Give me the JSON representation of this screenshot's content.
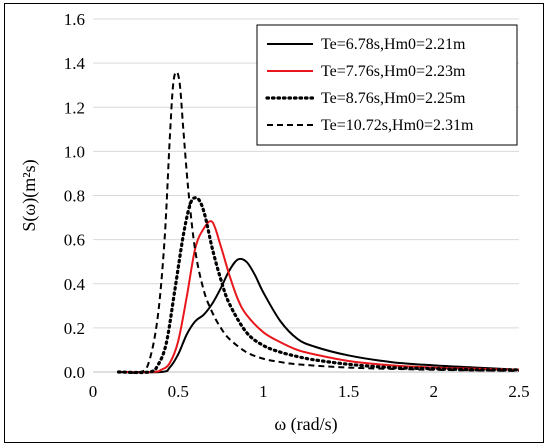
{
  "chart_data": {
    "type": "line",
    "title": "",
    "xlabel": "ω (rad/s)",
    "ylabel": "S(ω)(m²s)",
    "xlim": [
      0,
      2.5
    ],
    "ylim": [
      0,
      1.6
    ],
    "xticks": [
      0,
      0.5,
      1,
      1.5,
      2,
      2.5
    ],
    "xtick_labels": [
      "0",
      "0.5",
      "1",
      "1.5",
      "2",
      "2.5"
    ],
    "yticks": [
      0,
      0.2,
      0.4,
      0.6,
      0.8,
      1.0,
      1.2,
      1.4,
      1.6
    ],
    "ytick_labels": [
      "0.0",
      "0.2",
      "0.4",
      "0.6",
      "0.8",
      "1.0",
      "1.2",
      "1.4",
      "1.6"
    ],
    "grid": "horizontal",
    "legend_position": "top-right",
    "series": [
      {
        "name": "Te=6.78s,Hm0=2.21m",
        "color": "#000000",
        "style": "solid",
        "x": [
          0.15,
          0.4,
          0.45,
          0.5,
          0.55,
          0.6,
          0.65,
          0.7,
          0.75,
          0.8,
          0.85,
          0.9,
          0.95,
          1.0,
          1.1,
          1.2,
          1.3,
          1.5,
          1.75,
          2.0,
          2.25,
          2.5
        ],
        "y": [
          0.0,
          0.0,
          0.02,
          0.08,
          0.17,
          0.23,
          0.26,
          0.31,
          0.38,
          0.46,
          0.51,
          0.5,
          0.44,
          0.36,
          0.23,
          0.15,
          0.115,
          0.075,
          0.045,
          0.03,
          0.02,
          0.01
        ]
      },
      {
        "name": "Te=7.76s,Hm0=2.23m",
        "color": "#e8171b",
        "style": "solid",
        "x": [
          0.15,
          0.35,
          0.4,
          0.45,
          0.5,
          0.55,
          0.6,
          0.65,
          0.7,
          0.75,
          0.8,
          0.85,
          0.9,
          1.0,
          1.1,
          1.2,
          1.3,
          1.5,
          1.75,
          2.0,
          2.25,
          2.5
        ],
        "y": [
          0.0,
          0.0,
          0.01,
          0.04,
          0.14,
          0.34,
          0.56,
          0.65,
          0.68,
          0.57,
          0.44,
          0.33,
          0.26,
          0.18,
          0.135,
          0.1,
          0.08,
          0.05,
          0.03,
          0.02,
          0.015,
          0.01
        ]
      },
      {
        "name": "Te=8.76s,Hm0=2.25m",
        "color": "#000000",
        "style": "dotted",
        "x": [
          0.15,
          0.33,
          0.38,
          0.43,
          0.48,
          0.53,
          0.57,
          0.6,
          0.63,
          0.66,
          0.7,
          0.75,
          0.8,
          0.9,
          1.0,
          1.1,
          1.2,
          1.3,
          1.5,
          1.75,
          2.0,
          2.25,
          2.5
        ],
        "y": [
          0.0,
          0.0,
          0.03,
          0.13,
          0.37,
          0.62,
          0.76,
          0.79,
          0.77,
          0.7,
          0.56,
          0.42,
          0.31,
          0.18,
          0.12,
          0.09,
          0.07,
          0.055,
          0.035,
          0.02,
          0.015,
          0.01,
          0.01
        ]
      },
      {
        "name": "Te=10.72s,Hm0=2.31m",
        "color": "#000000",
        "style": "dashed",
        "x": [
          0.15,
          0.28,
          0.33,
          0.38,
          0.42,
          0.45,
          0.47,
          0.49,
          0.51,
          0.53,
          0.56,
          0.6,
          0.65,
          0.7,
          0.75,
          0.8,
          0.9,
          1.0,
          1.1,
          1.2,
          1.5,
          2.0,
          2.5
        ],
        "y": [
          0.0,
          0.0,
          0.05,
          0.25,
          0.6,
          1.05,
          1.3,
          1.36,
          1.3,
          1.1,
          0.82,
          0.55,
          0.37,
          0.27,
          0.2,
          0.15,
          0.09,
          0.06,
          0.045,
          0.035,
          0.02,
          0.01,
          0.005
        ]
      }
    ]
  }
}
